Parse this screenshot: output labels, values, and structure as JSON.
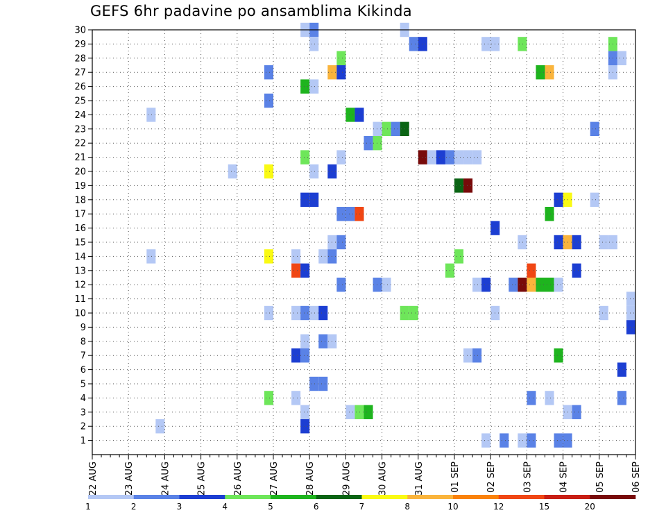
{
  "title": "GEFS 6hr padavine po ansamblima Kikinda",
  "chart_data": {
    "type": "heatmap",
    "title": "GEFS 6hr padavine po ansamblima Kikinda",
    "x_tick_labels": [
      "22 AUG",
      "23 AUG",
      "24 AUG",
      "25 AUG",
      "26 AUG",
      "27 AUG",
      "28 AUG",
      "29 AUG",
      "30 AUG",
      "31 AUG",
      "01 SEP",
      "02 SEP",
      "03 SEP",
      "04 SEP",
      "05 SEP",
      "06 SEP"
    ],
    "y_tick_labels": [
      "1",
      "2",
      "3",
      "4",
      "5",
      "6",
      "7",
      "8",
      "9",
      "10",
      "11",
      "12",
      "13",
      "14",
      "15",
      "16",
      "17",
      "18",
      "19",
      "20",
      "21",
      "22",
      "23",
      "24",
      "25",
      "26",
      "27",
      "28",
      "29",
      "30"
    ],
    "ylim": [
      0,
      30
    ],
    "x_steps_per_day": 4,
    "grid": true,
    "levels": [
      {
        "label": "1",
        "color": "#b4c8f5"
      },
      {
        "label": "2",
        "color": "#5a82e6"
      },
      {
        "label": "3",
        "color": "#1c3ed2"
      },
      {
        "label": "4",
        "color": "#6ee65a"
      },
      {
        "label": "5",
        "color": "#1eb41e"
      },
      {
        "label": "6",
        "color": "#0a6414"
      },
      {
        "label": "7",
        "color": "#fafa14"
      },
      {
        "label": "8",
        "color": "#fab43c"
      },
      {
        "label": "10",
        "color": "#fa820a"
      },
      {
        "label": "12",
        "color": "#f04614"
      },
      {
        "label": "15",
        "color": "#c81e14"
      },
      {
        "label": "20",
        "color": "#780a0a"
      }
    ],
    "cells": [
      [
        30,
        23.5,
        1
      ],
      [
        30,
        24.5,
        2
      ],
      [
        30,
        34.5,
        1
      ],
      [
        29,
        24.5,
        1
      ],
      [
        29,
        35.5,
        2
      ],
      [
        29,
        36.5,
        3
      ],
      [
        29,
        43.5,
        1
      ],
      [
        29,
        44.5,
        1
      ],
      [
        29,
        47.5,
        4
      ],
      [
        29,
        57.5,
        4
      ],
      [
        28,
        27.5,
        4
      ],
      [
        28,
        57.5,
        2
      ],
      [
        28,
        58.5,
        1
      ],
      [
        27,
        19.5,
        2
      ],
      [
        27,
        26.5,
        8
      ],
      [
        27,
        27.5,
        3
      ],
      [
        27,
        49.5,
        5
      ],
      [
        27,
        50.5,
        8
      ],
      [
        27,
        57.5,
        1
      ],
      [
        26,
        23.5,
        5
      ],
      [
        26,
        24.5,
        1
      ],
      [
        25,
        19.5,
        2
      ],
      [
        24,
        6.5,
        1
      ],
      [
        24,
        28.5,
        5
      ],
      [
        24,
        29.5,
        3
      ],
      [
        23,
        31.5,
        1
      ],
      [
        23,
        32.5,
        4
      ],
      [
        23,
        33.5,
        2
      ],
      [
        23,
        34.5,
        6
      ],
      [
        23,
        55.5,
        2
      ],
      [
        22,
        30.5,
        2
      ],
      [
        22,
        31.5,
        4
      ],
      [
        21,
        23.5,
        4
      ],
      [
        21,
        27.5,
        1
      ],
      [
        21,
        36.5,
        12
      ],
      [
        21,
        37.5,
        1
      ],
      [
        21,
        38.5,
        3
      ],
      [
        21,
        39.5,
        2
      ],
      [
        21,
        40.5,
        1
      ],
      [
        21,
        41.5,
        1
      ],
      [
        21,
        42.5,
        1
      ],
      [
        20,
        15.5,
        1
      ],
      [
        20,
        19.5,
        7
      ],
      [
        20,
        24.5,
        1
      ],
      [
        20,
        26.5,
        3
      ],
      [
        19,
        40.5,
        6
      ],
      [
        19,
        41.5,
        12
      ],
      [
        18,
        23.5,
        3
      ],
      [
        18,
        24.5,
        3
      ],
      [
        18,
        51.5,
        3
      ],
      [
        18,
        52.5,
        7
      ],
      [
        18,
        55.5,
        1
      ],
      [
        17,
        27.5,
        2
      ],
      [
        17,
        28.5,
        2
      ],
      [
        17,
        29.5,
        10
      ],
      [
        17,
        50.5,
        5
      ],
      [
        16,
        44.5,
        3
      ],
      [
        15,
        26.5,
        1
      ],
      [
        15,
        27.5,
        2
      ],
      [
        15,
        47.5,
        1
      ],
      [
        15,
        51.5,
        3
      ],
      [
        15,
        52.5,
        8
      ],
      [
        15,
        53.5,
        3
      ],
      [
        15,
        56.5,
        1
      ],
      [
        15,
        57.5,
        1
      ],
      [
        14,
        6.5,
        1
      ],
      [
        14,
        19.5,
        7
      ],
      [
        14,
        22.5,
        1
      ],
      [
        14,
        25.5,
        1
      ],
      [
        14,
        26.5,
        2
      ],
      [
        14,
        40.5,
        4
      ],
      [
        13,
        22.5,
        10
      ],
      [
        13,
        23.5,
        3
      ],
      [
        13,
        39.5,
        4
      ],
      [
        13,
        48.5,
        10
      ],
      [
        13,
        53.5,
        3
      ],
      [
        12,
        27.5,
        2
      ],
      [
        12,
        31.5,
        2
      ],
      [
        12,
        32.5,
        1
      ],
      [
        12,
        42.5,
        1
      ],
      [
        12,
        43.5,
        3
      ],
      [
        12,
        46.5,
        2
      ],
      [
        12,
        47.5,
        12
      ],
      [
        12,
        48.5,
        8
      ],
      [
        12,
        49.5,
        5
      ],
      [
        12,
        50.5,
        5
      ],
      [
        12,
        51.5,
        1
      ],
      [
        11,
        59.5,
        1
      ],
      [
        10,
        19.5,
        1
      ],
      [
        10,
        22.5,
        1
      ],
      [
        10,
        23.5,
        2
      ],
      [
        10,
        24.5,
        1
      ],
      [
        10,
        25.5,
        3
      ],
      [
        10,
        34.5,
        4
      ],
      [
        10,
        35.5,
        4
      ],
      [
        10,
        44.5,
        1
      ],
      [
        10,
        56.5,
        1
      ],
      [
        10,
        59.5,
        1
      ],
      [
        9,
        59.5,
        3
      ],
      [
        8,
        23.5,
        1
      ],
      [
        8,
        25.5,
        2
      ],
      [
        8,
        26.5,
        1
      ],
      [
        7,
        22.5,
        3
      ],
      [
        7,
        23.5,
        2
      ],
      [
        7,
        41.5,
        1
      ],
      [
        7,
        42.5,
        2
      ],
      [
        7,
        51.5,
        5
      ],
      [
        6,
        58.5,
        3
      ],
      [
        5,
        24.5,
        2
      ],
      [
        5,
        25.5,
        2
      ],
      [
        4,
        19.5,
        4
      ],
      [
        4,
        22.5,
        1
      ],
      [
        4,
        48.5,
        2
      ],
      [
        4,
        50.5,
        1
      ],
      [
        4,
        58.5,
        2
      ],
      [
        3,
        23.5,
        1
      ],
      [
        3,
        28.5,
        1
      ],
      [
        3,
        29.5,
        4
      ],
      [
        3,
        30.5,
        5
      ],
      [
        3,
        52.5,
        1
      ],
      [
        3,
        53.5,
        2
      ],
      [
        2,
        7.5,
        1
      ],
      [
        2,
        23.5,
        3
      ],
      [
        1,
        43.5,
        1
      ],
      [
        1,
        45.5,
        2
      ],
      [
        1,
        47.5,
        1
      ],
      [
        1,
        48.5,
        2
      ],
      [
        1,
        51.5,
        2
      ],
      [
        1,
        52.5,
        2
      ]
    ]
  }
}
